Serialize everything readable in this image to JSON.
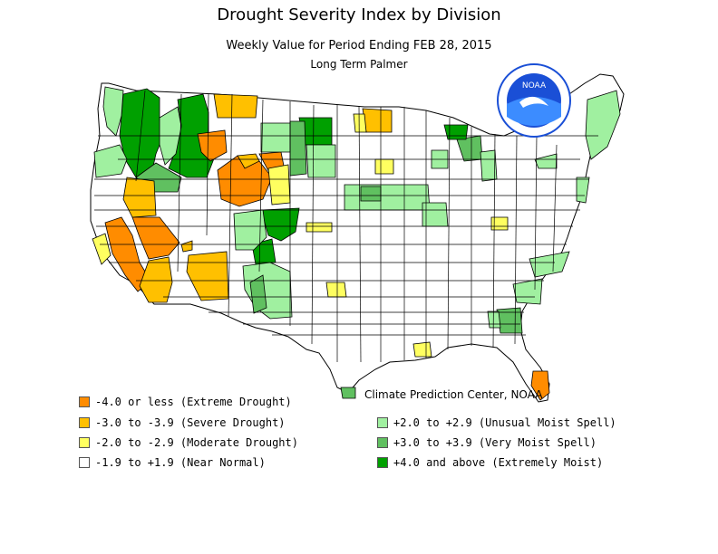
{
  "header": {
    "title": "Drought Severity Index by Division",
    "subtitle": "Weekly Value for Period Ending FEB 28, 2015",
    "subtitle2": "Long Term Palmer"
  },
  "credit": "Climate Prediction Center, NOAA",
  "logo": {
    "text": "NOAA",
    "icon": "noaa-seal-icon"
  },
  "legend": {
    "left": [
      {
        "label": "-4.0 or less (Extreme Drought)",
        "color": "#ff8c00"
      },
      {
        "label": "-3.0 to -3.9 (Severe Drought)",
        "color": "#ffc000"
      },
      {
        "label": "-2.0 to -2.9 (Moderate Drought)",
        "color": "#ffff60"
      },
      {
        "label": "-1.9 to +1.9 (Near Normal)",
        "color": "#ffffff"
      }
    ],
    "right": [
      {
        "label": "+2.0 to +2.9 (Unusual Moist Spell)",
        "color": "#a0f0a0"
      },
      {
        "label": "+3.0 to +3.9 (Very Moist Spell)",
        "color": "#60c060"
      },
      {
        "label": "+4.0 and above (Extremely Moist)",
        "color": "#00a000"
      }
    ]
  },
  "colors": {
    "extreme_drought": "#ff8c00",
    "severe_drought": "#ffc000",
    "moderate_drought": "#ffff60",
    "near_normal": "#ffffff",
    "unusual_moist": "#a0f0a0",
    "very_moist": "#60c060",
    "extremely_moist": "#00a000",
    "boundary": "#000000",
    "noaa_blue": "#1a4fd6"
  }
}
